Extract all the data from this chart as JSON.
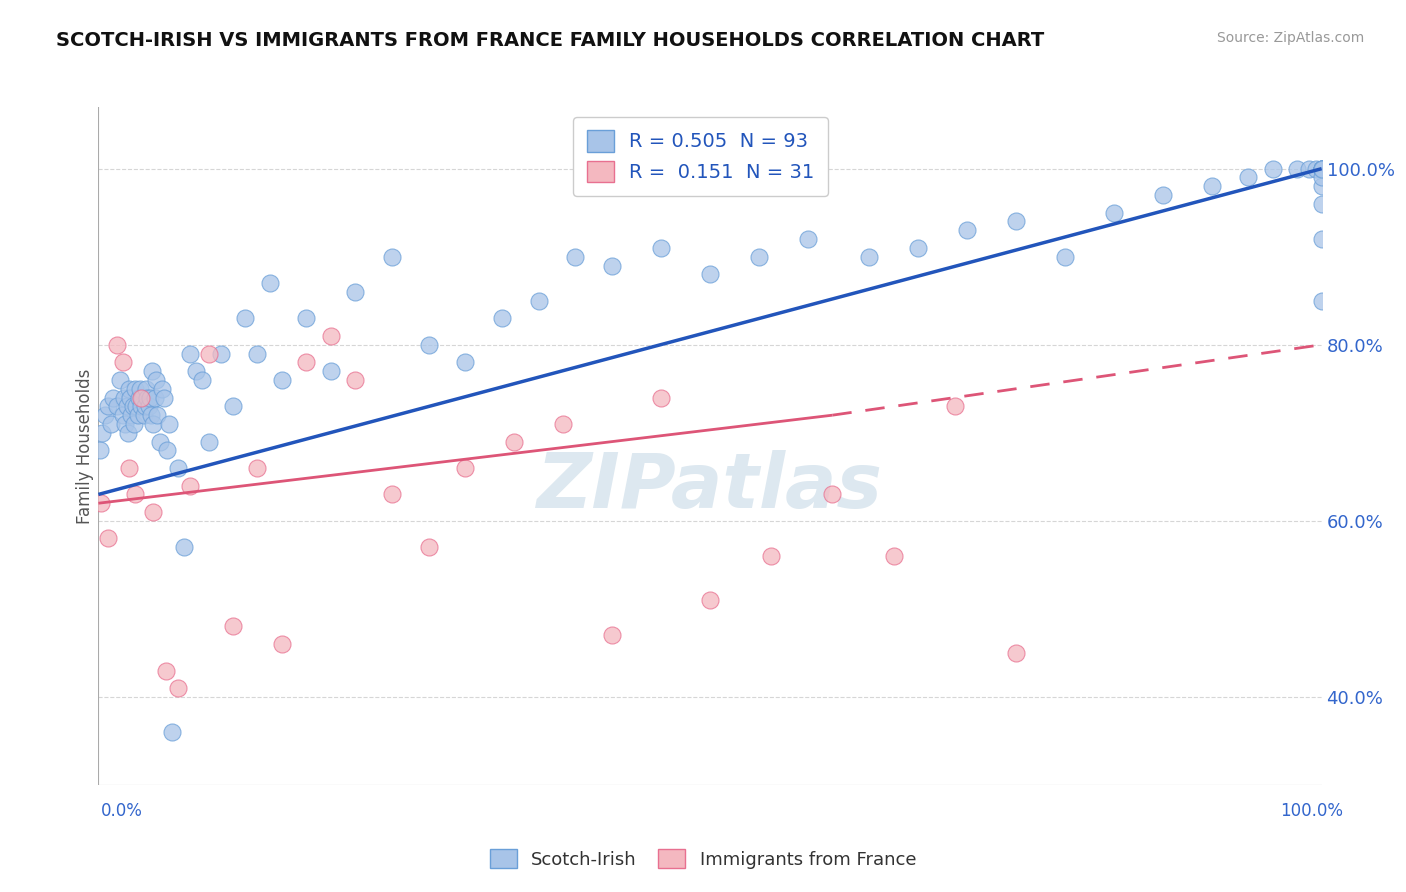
{
  "title": "SCOTCH-IRISH VS IMMIGRANTS FROM FRANCE FAMILY HOUSEHOLDS CORRELATION CHART",
  "source": "Source: ZipAtlas.com",
  "ylabel": "Family Households",
  "legend1_label": "R = 0.505  N = 93",
  "legend2_label": "R =  0.151  N = 31",
  "legend_bottom1": "Scotch-Irish",
  "legend_bottom2": "Immigrants from France",
  "blue_scatter_color": "#a8c4e8",
  "blue_edge_color": "#6a9fd8",
  "pink_scatter_color": "#f4b8c0",
  "pink_edge_color": "#e87090",
  "blue_line_color": "#2255bb",
  "pink_line_color": "#dd5577",
  "watermark_color": "#dde8f0",
  "blue_r": 0.505,
  "blue_n": 93,
  "pink_r": 0.151,
  "pink_n": 31,
  "blue_x": [
    0.1,
    0.3,
    0.5,
    0.8,
    1.0,
    1.2,
    1.5,
    1.8,
    2.0,
    2.1,
    2.2,
    2.3,
    2.4,
    2.5,
    2.6,
    2.7,
    2.8,
    2.9,
    3.0,
    3.1,
    3.2,
    3.3,
    3.4,
    3.5,
    3.6,
    3.7,
    3.8,
    3.9,
    4.0,
    4.1,
    4.2,
    4.3,
    4.4,
    4.5,
    4.6,
    4.7,
    4.8,
    5.0,
    5.2,
    5.4,
    5.6,
    5.8,
    6.0,
    6.5,
    7.0,
    7.5,
    8.0,
    8.5,
    9.0,
    10.0,
    11.0,
    12.0,
    13.0,
    14.0,
    15.0,
    17.0,
    19.0,
    21.0,
    24.0,
    27.0,
    30.0,
    33.0,
    36.0,
    39.0,
    42.0,
    46.0,
    50.0,
    54.0,
    58.0,
    63.0,
    67.0,
    71.0,
    75.0,
    79.0,
    83.0,
    87.0,
    91.0,
    94.0,
    96.0,
    98.0,
    99.0,
    99.5,
    100.0,
    100.0,
    100.0,
    100.0,
    100.0,
    100.0,
    100.0,
    100.0,
    100.0,
    100.0,
    100.0
  ],
  "blue_y": [
    68.0,
    70.0,
    72.0,
    73.0,
    71.0,
    74.0,
    73.0,
    76.0,
    72.0,
    74.0,
    71.0,
    73.0,
    70.0,
    75.0,
    74.0,
    72.0,
    73.0,
    71.0,
    75.0,
    73.0,
    72.0,
    74.0,
    75.0,
    73.0,
    74.0,
    72.0,
    73.0,
    75.0,
    74.0,
    73.0,
    74.0,
    72.0,
    77.0,
    71.0,
    74.0,
    76.0,
    72.0,
    69.0,
    75.0,
    74.0,
    68.0,
    71.0,
    36.0,
    66.0,
    57.0,
    79.0,
    77.0,
    76.0,
    69.0,
    79.0,
    73.0,
    83.0,
    79.0,
    87.0,
    76.0,
    83.0,
    77.0,
    86.0,
    90.0,
    80.0,
    78.0,
    83.0,
    85.0,
    90.0,
    89.0,
    91.0,
    88.0,
    90.0,
    92.0,
    90.0,
    91.0,
    93.0,
    94.0,
    90.0,
    95.0,
    97.0,
    98.0,
    99.0,
    100.0,
    100.0,
    100.0,
    100.0,
    100.0,
    100.0,
    100.0,
    100.0,
    100.0,
    85.0,
    92.0,
    96.0,
    98.0,
    99.0,
    100.0
  ],
  "pink_x": [
    0.2,
    0.8,
    1.5,
    2.0,
    2.5,
    3.0,
    3.5,
    4.5,
    5.5,
    6.5,
    7.5,
    9.0,
    11.0,
    13.0,
    15.0,
    17.0,
    19.0,
    21.0,
    24.0,
    27.0,
    30.0,
    34.0,
    38.0,
    42.0,
    46.0,
    50.0,
    55.0,
    60.0,
    65.0,
    70.0,
    75.0
  ],
  "pink_y": [
    62.0,
    58.0,
    80.0,
    78.0,
    66.0,
    63.0,
    74.0,
    61.0,
    43.0,
    41.0,
    64.0,
    79.0,
    48.0,
    66.0,
    46.0,
    78.0,
    81.0,
    76.0,
    63.0,
    57.0,
    66.0,
    69.0,
    71.0,
    47.0,
    74.0,
    51.0,
    56.0,
    63.0,
    56.0,
    73.0,
    45.0
  ],
  "xmin": 0.0,
  "xmax": 100.0,
  "ymin": 30.0,
  "ymax": 107.0,
  "yticks": [
    40.0,
    60.0,
    80.0,
    100.0
  ],
  "background_color": "#ffffff",
  "grid_color": "#cccccc"
}
